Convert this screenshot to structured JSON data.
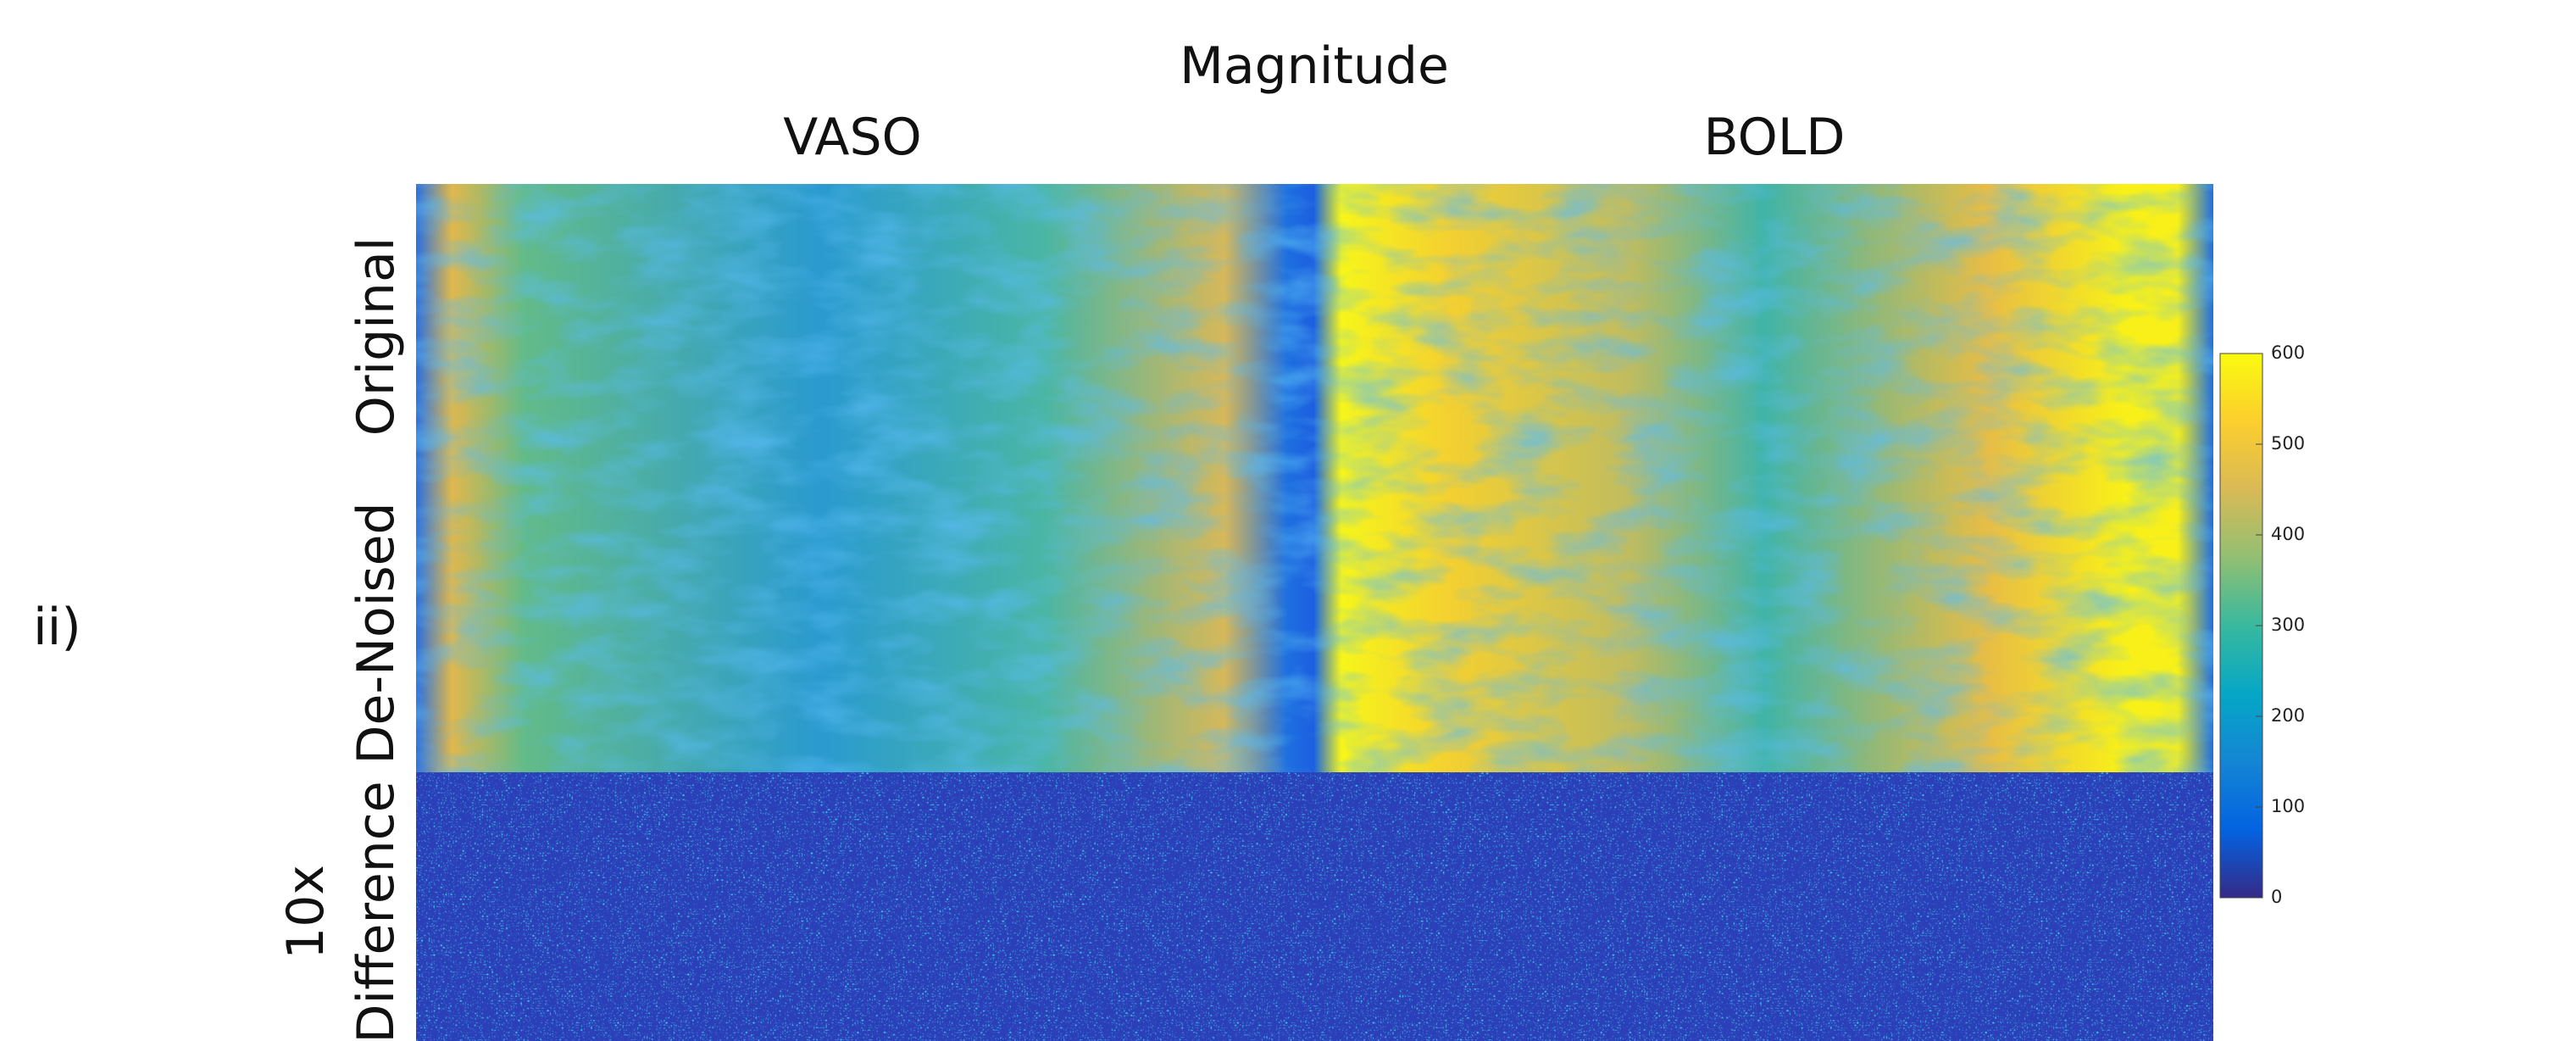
{
  "header": {
    "panel_label": "ii)",
    "title": "Magnitude",
    "columns": [
      "VASO",
      "BOLD"
    ]
  },
  "rows": [
    [
      "Original"
    ],
    [
      "De-Noised"
    ],
    [
      "10x",
      "Difference"
    ]
  ],
  "colorbar": {
    "lim": [
      0,
      600
    ],
    "ticks": [
      0,
      100,
      200,
      300,
      400,
      500,
      600
    ]
  }
}
